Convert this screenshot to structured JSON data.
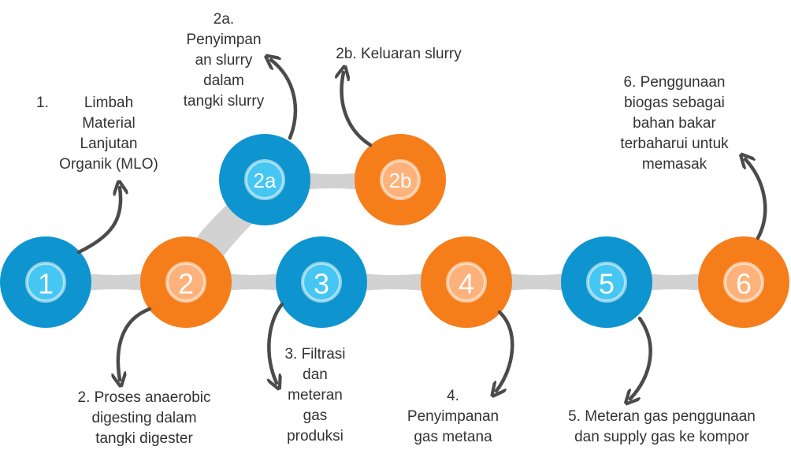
{
  "colors": {
    "blue": "#0e95cf",
    "blue_inner": "#46c6f2",
    "orange": "#f57e1b",
    "orange_inner": "#fcb27a",
    "connector": "#d2d2d2",
    "arrow": "#4b4b4b"
  },
  "nodes": [
    {
      "id": "1",
      "label": "1",
      "color": "blue"
    },
    {
      "id": "2",
      "label": "2",
      "color": "orange"
    },
    {
      "id": "2a",
      "label": "2a",
      "color": "blue"
    },
    {
      "id": "2b",
      "label": "2b",
      "color": "orange"
    },
    {
      "id": "3",
      "label": "3",
      "color": "blue"
    },
    {
      "id": "4",
      "label": "4",
      "color": "orange"
    },
    {
      "id": "5",
      "label": "5",
      "color": "blue"
    },
    {
      "id": "6",
      "label": "6",
      "color": "orange"
    }
  ],
  "labels": {
    "step1_number": "1.",
    "step1": "Limbah\nMaterial\nLanjutan\nOrganik (MLO)",
    "step2": "2. Proses anaerobic\ndigesting dalam\ntangki digester",
    "step2a": "2a.\nPenyimpan\nan slurry\ndalam\ntangki slurry",
    "step2b": "2b. Keluaran slurry",
    "step3": "3. Filtrasi\ndan\nmeteran\ngas\nproduksi",
    "step4": "4.\nPenyimpanan\ngas metana",
    "step5": "5. Meteran gas penggunaan\ndan supply gas ke kompor",
    "step6": "6. Penggunaan\nbiogas sebagai\nbahan bakar\nterbaharui untuk\nmemasak"
  }
}
